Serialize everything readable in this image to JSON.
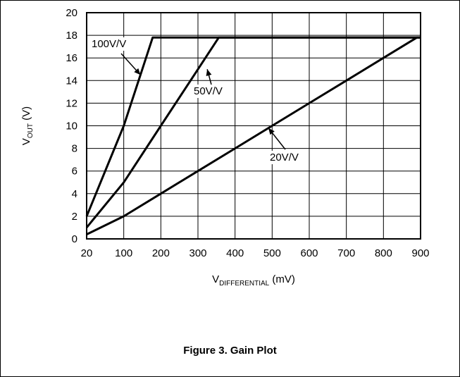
{
  "figure_caption": "Figure 3. Gain Plot",
  "chart_data": {
    "type": "line",
    "title": "",
    "xlabel": {
      "main": "V",
      "sub": "DIFFERENTIAL",
      "unit": " (mV)"
    },
    "ylabel": {
      "main": "V",
      "sub": "OUT",
      "unit": " (V)"
    },
    "x_ticks": [
      "20",
      "100",
      "200",
      "300",
      "400",
      "500",
      "600",
      "700",
      "800",
      "900"
    ],
    "y_ticks": [
      "0",
      "2",
      "4",
      "6",
      "8",
      "10",
      "12",
      "14",
      "16",
      "18",
      "20"
    ],
    "xlim": [
      20,
      900
    ],
    "ylim": [
      0,
      20
    ],
    "x_tick_values": [
      20,
      100,
      200,
      300,
      400,
      500,
      600,
      700,
      800,
      900
    ],
    "grid": true,
    "series": [
      {
        "name": "100V/V",
        "x": [
          20,
          100,
          150,
          178,
          190,
          900
        ],
        "y": [
          2,
          10,
          15,
          17.8,
          17.8,
          17.8
        ]
      },
      {
        "name": "50V/V",
        "x": [
          20,
          100,
          200,
          300,
          356,
          380,
          900
        ],
        "y": [
          1,
          5,
          10,
          15,
          17.8,
          17.8,
          17.8
        ]
      },
      {
        "name": "20V/V",
        "x": [
          20,
          100,
          200,
          300,
          400,
          500,
          600,
          700,
          800,
          890,
          900
        ],
        "y": [
          0.4,
          2,
          4,
          6,
          8,
          10,
          12,
          14,
          16,
          17.8,
          17.8
        ]
      }
    ],
    "annotations": [
      {
        "text": "100V/V",
        "series": "100V/V",
        "arrow_to": [
          145,
          14.5
        ]
      },
      {
        "text": "50V/V",
        "series": "50V/V",
        "arrow_to": [
          325,
          15
        ]
      },
      {
        "text": "20V/V",
        "series": "20V/V",
        "arrow_to": [
          490,
          9.8
        ]
      }
    ],
    "line_color": "#000000"
  }
}
